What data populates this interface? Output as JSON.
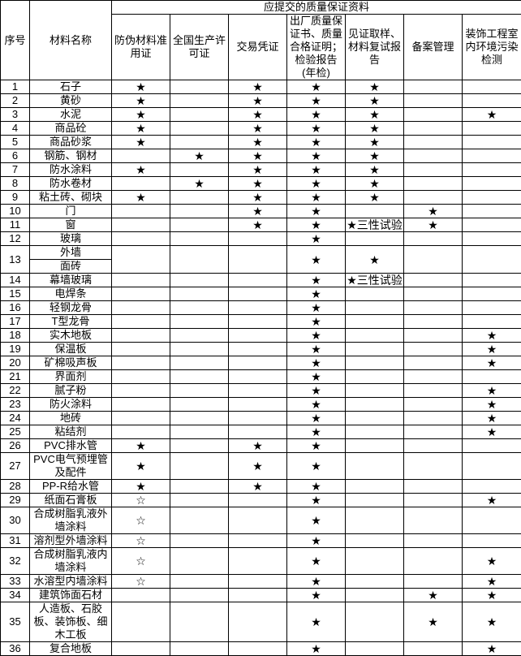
{
  "header": {
    "no": "序号",
    "name": "材料名称",
    "group": "应提交的质量保证资料",
    "columns": [
      "防伪材料准用证",
      "全国生产许可证",
      "交易凭证",
      "出厂质量保证书、质量合格证明；检验报告(年检)",
      "见证取样、材料复试报告",
      "备案管理",
      "装饰工程室内环境污染检测"
    ]
  },
  "symbols": {
    "required": "★",
    "optional": "☆"
  },
  "rows": [
    {
      "no": "1",
      "name": [
        "石子"
      ],
      "marks": [
        "★",
        "",
        "★",
        "★",
        "★",
        "",
        ""
      ]
    },
    {
      "no": "2",
      "name": [
        "黄砂"
      ],
      "marks": [
        "★",
        "",
        "★",
        "★",
        "★",
        "",
        ""
      ]
    },
    {
      "no": "3",
      "name": [
        "水泥"
      ],
      "marks": [
        "★",
        "",
        "★",
        "★",
        "★",
        "",
        "★"
      ]
    },
    {
      "no": "4",
      "name": [
        "商品砼"
      ],
      "marks": [
        "★",
        "",
        "★",
        "★",
        "★",
        "",
        ""
      ]
    },
    {
      "no": "5",
      "name": [
        "商品砂浆"
      ],
      "marks": [
        "★",
        "",
        "★",
        "★",
        "★",
        "",
        ""
      ]
    },
    {
      "no": "6",
      "name": [
        "钢筋、钢材"
      ],
      "marks": [
        "",
        "★",
        "★",
        "★",
        "★",
        "",
        ""
      ]
    },
    {
      "no": "7",
      "name": [
        "防水涂料"
      ],
      "marks": [
        "★",
        "",
        "★",
        "★",
        "★",
        "",
        ""
      ]
    },
    {
      "no": "8",
      "name": [
        "防水卷材"
      ],
      "marks": [
        "",
        "★",
        "★",
        "★",
        "★",
        "",
        ""
      ]
    },
    {
      "no": "9",
      "name": [
        "粘土砖、砌块"
      ],
      "marks": [
        "★",
        "",
        "★",
        "★",
        "★",
        "",
        ""
      ]
    },
    {
      "no": "10",
      "name": [
        "门"
      ],
      "marks": [
        "",
        "",
        "★",
        "★",
        "",
        "★",
        ""
      ]
    },
    {
      "no": "11",
      "name": [
        "窗"
      ],
      "marks": [
        "",
        "",
        "★",
        "★",
        "★三性试验",
        "★",
        ""
      ]
    },
    {
      "no": "12",
      "name": [
        "玻璃"
      ],
      "marks": [
        "",
        "",
        "",
        "★",
        "",
        "",
        ""
      ]
    },
    {
      "no": "13",
      "name": [
        "外墙",
        "面砖"
      ],
      "marks": [
        "",
        "",
        "",
        "★",
        "★",
        "",
        ""
      ]
    },
    {
      "no": "14",
      "name": [
        "幕墙玻璃"
      ],
      "marks": [
        "",
        "",
        "",
        "★",
        "★三性试验",
        "",
        ""
      ]
    },
    {
      "no": "15",
      "name": [
        "电焊条"
      ],
      "marks": [
        "",
        "",
        "",
        "★",
        "",
        "",
        ""
      ]
    },
    {
      "no": "16",
      "name": [
        "轻钢龙骨"
      ],
      "marks": [
        "",
        "",
        "",
        "★",
        "",
        "",
        ""
      ]
    },
    {
      "no": "17",
      "name": [
        "T型龙骨"
      ],
      "marks": [
        "",
        "",
        "",
        "★",
        "",
        "",
        ""
      ]
    },
    {
      "no": "18",
      "name": [
        "实木地板"
      ],
      "marks": [
        "",
        "",
        "",
        "★",
        "",
        "",
        "★"
      ]
    },
    {
      "no": "19",
      "name": [
        "保温板"
      ],
      "marks": [
        "",
        "",
        "",
        "★",
        "",
        "",
        "★"
      ]
    },
    {
      "no": "20",
      "name": [
        "矿棉吸声板"
      ],
      "marks": [
        "",
        "",
        "",
        "★",
        "",
        "",
        "★"
      ]
    },
    {
      "no": "21",
      "name": [
        "界面剂"
      ],
      "marks": [
        "",
        "",
        "",
        "★",
        "",
        "",
        ""
      ]
    },
    {
      "no": "22",
      "name": [
        "腻子粉"
      ],
      "marks": [
        "",
        "",
        "",
        "★",
        "",
        "",
        "★"
      ]
    },
    {
      "no": "23",
      "name": [
        "防火涂料"
      ],
      "marks": [
        "",
        "",
        "",
        "★",
        "",
        "",
        "★"
      ]
    },
    {
      "no": "24",
      "name": [
        "地砖"
      ],
      "marks": [
        "",
        "",
        "",
        "★",
        "",
        "",
        "★"
      ]
    },
    {
      "no": "25",
      "name": [
        "粘结剂"
      ],
      "marks": [
        "",
        "",
        "",
        "★",
        "",
        "",
        "★"
      ]
    },
    {
      "no": "26",
      "name": [
        "PVC排水管"
      ],
      "marks": [
        "★",
        "",
        "★",
        "★",
        "",
        "",
        ""
      ]
    },
    {
      "no": "27",
      "name": [
        "PVC电气预埋管及配件"
      ],
      "marks": [
        "★",
        "",
        "★",
        "★",
        "",
        "",
        ""
      ]
    },
    {
      "no": "28",
      "name": [
        "PP-R给水管"
      ],
      "marks": [
        "★",
        "",
        "★",
        "★",
        "",
        "",
        ""
      ]
    },
    {
      "no": "29",
      "name": [
        "纸面石膏板"
      ],
      "marks": [
        "☆",
        "",
        "",
        "★",
        "",
        "",
        "★"
      ]
    },
    {
      "no": "30",
      "name": [
        "合成树脂乳液外墙涂料"
      ],
      "marks": [
        "☆",
        "",
        "",
        "★",
        "",
        "",
        ""
      ]
    },
    {
      "no": "31",
      "name": [
        "溶剂型外墙涂料"
      ],
      "marks": [
        "☆",
        "",
        "",
        "★",
        "",
        "",
        ""
      ]
    },
    {
      "no": "32",
      "name": [
        "合成树脂乳液内墙涂料"
      ],
      "marks": [
        "☆",
        "",
        "",
        "★",
        "",
        "",
        "★"
      ]
    },
    {
      "no": "33",
      "name": [
        "水溶型内墙涂料"
      ],
      "marks": [
        "☆",
        "",
        "",
        "★",
        "",
        "",
        "★"
      ]
    },
    {
      "no": "34",
      "name": [
        "建筑饰面石材"
      ],
      "marks": [
        "",
        "",
        "",
        "★",
        "",
        "★",
        "★"
      ]
    },
    {
      "no": "35",
      "name": [
        "人造板、石胶板、装饰板、细木工板"
      ],
      "marks": [
        "",
        "",
        "",
        "★",
        "",
        "★",
        "★"
      ]
    },
    {
      "no": "36",
      "name": [
        "复合地板"
      ],
      "marks": [
        "",
        "",
        "",
        "★",
        "",
        "",
        "★"
      ]
    }
  ]
}
